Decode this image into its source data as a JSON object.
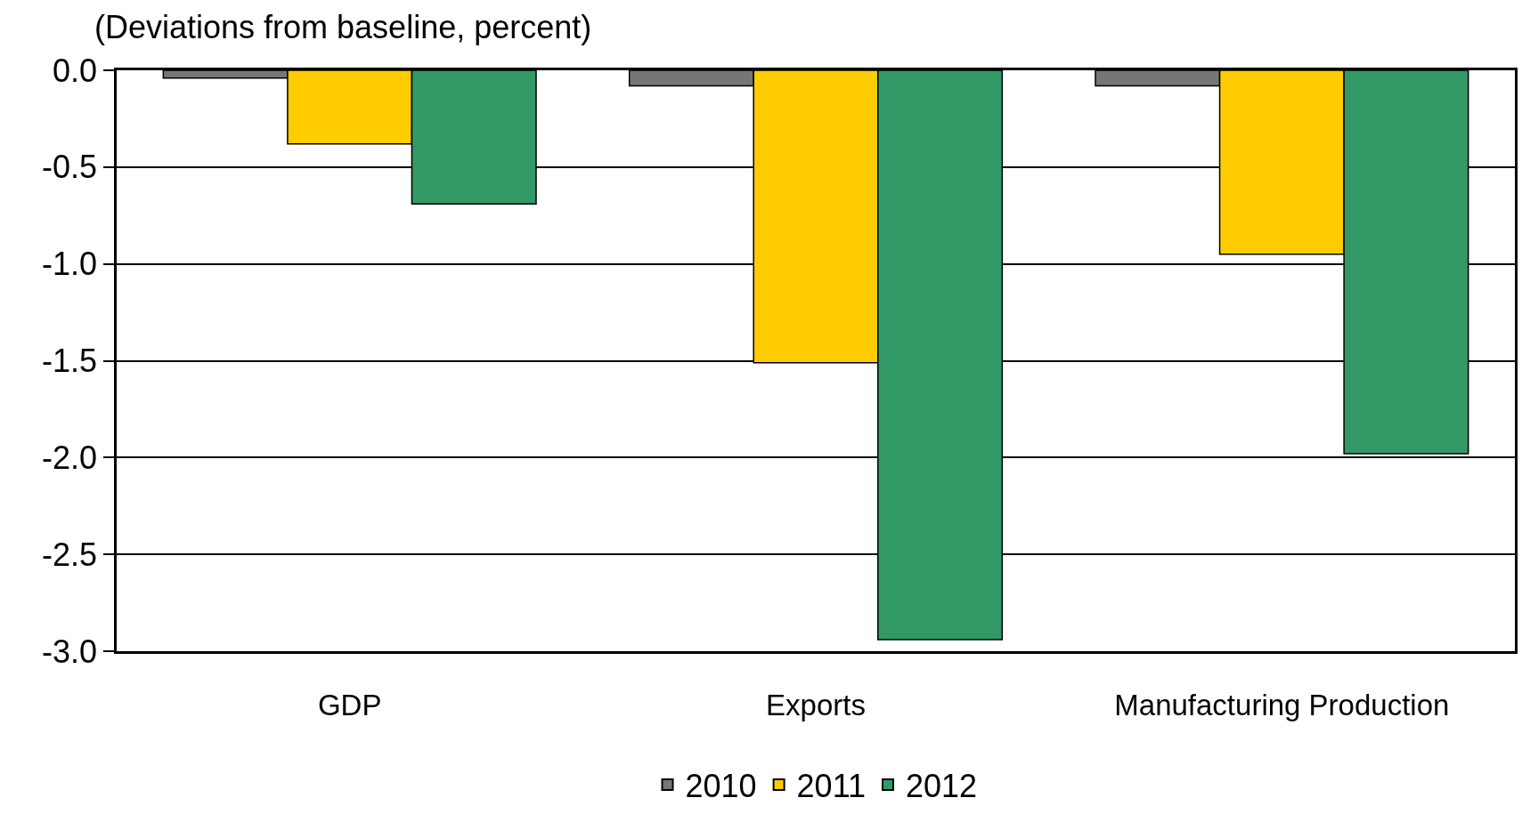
{
  "chart_data": {
    "type": "bar",
    "ylabel": "(Deviations from baseline, percent)",
    "categories": [
      "GDP",
      "Exports",
      "Manufacturing Production"
    ],
    "series": [
      {
        "name": "2010",
        "color": "#767676",
        "values": [
          -0.04,
          -0.08,
          -0.08
        ]
      },
      {
        "name": "2011",
        "color": "#ffcc00",
        "values": [
          -0.38,
          -1.51,
          -0.95
        ]
      },
      {
        "name": "2012",
        "color": "#339966",
        "values": [
          -0.69,
          -2.94,
          -1.98
        ]
      }
    ],
    "ylim": [
      -3.0,
      0.0
    ],
    "yticks": [
      {
        "value": 0.0,
        "label": "0.0"
      },
      -0.5,
      {
        "value": -1.0,
        "label": "-1.0"
      },
      -1.5,
      {
        "value": -2.0,
        "label": "-2.0"
      },
      -2.5,
      {
        "value": -3.0,
        "label": "-3.0"
      }
    ],
    "grid": "y",
    "legend": "bottom"
  }
}
